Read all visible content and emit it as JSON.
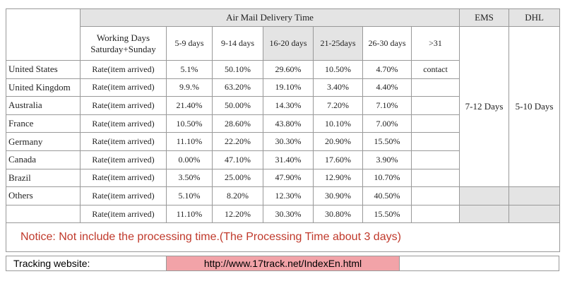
{
  "header": {
    "title": "Air Mail Delivery Time",
    "ems": "EMS",
    "dhl": "DHL",
    "working_days": [
      "Working Days",
      "Saturday+Sunday"
    ],
    "ranges": [
      "5-9 days",
      "9-14 days",
      "16-20 days",
      "21-25days",
      "26-30 days",
      ">31"
    ]
  },
  "rows": [
    {
      "country": "United States",
      "label": "Rate(item arrived)",
      "values": [
        "5.1%",
        "50.10%",
        "29.60%",
        "10.50%",
        "4.70%"
      ],
      "over31": "contact"
    },
    {
      "country": "United Kingdom",
      "label": "Rate(item arrived)",
      "values": [
        "9.9.%",
        "63.20%",
        "19.10%",
        "3.40%",
        "4.40%"
      ]
    },
    {
      "country": "Australia",
      "label": "Rate(item arrived)",
      "values": [
        "21.40%",
        "50.00%",
        "14.30%",
        "7.20%",
        "7.10%"
      ]
    },
    {
      "country": "France",
      "label": "Rate(item arrived)",
      "values": [
        "10.50%",
        "28.60%",
        "43.80%",
        "10.10%",
        "7.00%"
      ]
    },
    {
      "country": "Germany",
      "label": "Rate(item arrived)",
      "values": [
        "11.10%",
        "22.20%",
        "30.30%",
        "20.90%",
        "15.50%"
      ]
    },
    {
      "country": "Canada",
      "label": "Rate(item arrived)",
      "values": [
        "0.00%",
        "47.10%",
        "31.40%",
        "17.60%",
        "3.90%"
      ]
    },
    {
      "country": "Brazil",
      "label": "Rate(item arrived)",
      "values": [
        "3.50%",
        "25.00%",
        "47.90%",
        "12.90%",
        "10.70%"
      ]
    },
    {
      "country": "Others",
      "label": "Rate(item arrived)",
      "values": [
        "5.10%",
        "8.20%",
        "12.30%",
        "30.90%",
        "40.50%"
      ]
    },
    {
      "label": "Rate(item arrived)",
      "values": [
        "11.10%",
        "12.20%",
        "30.30%",
        "30.80%",
        "15.50%"
      ]
    }
  ],
  "ems_time": "7-12 Days",
  "dhl_time": "5-10 Days",
  "notice": "Notice: Not include the processing time.(The Processing Time about 3 days)",
  "tracking": {
    "label": "Tracking website:",
    "url": "http://www.17track.net/IndexEn.html"
  }
}
